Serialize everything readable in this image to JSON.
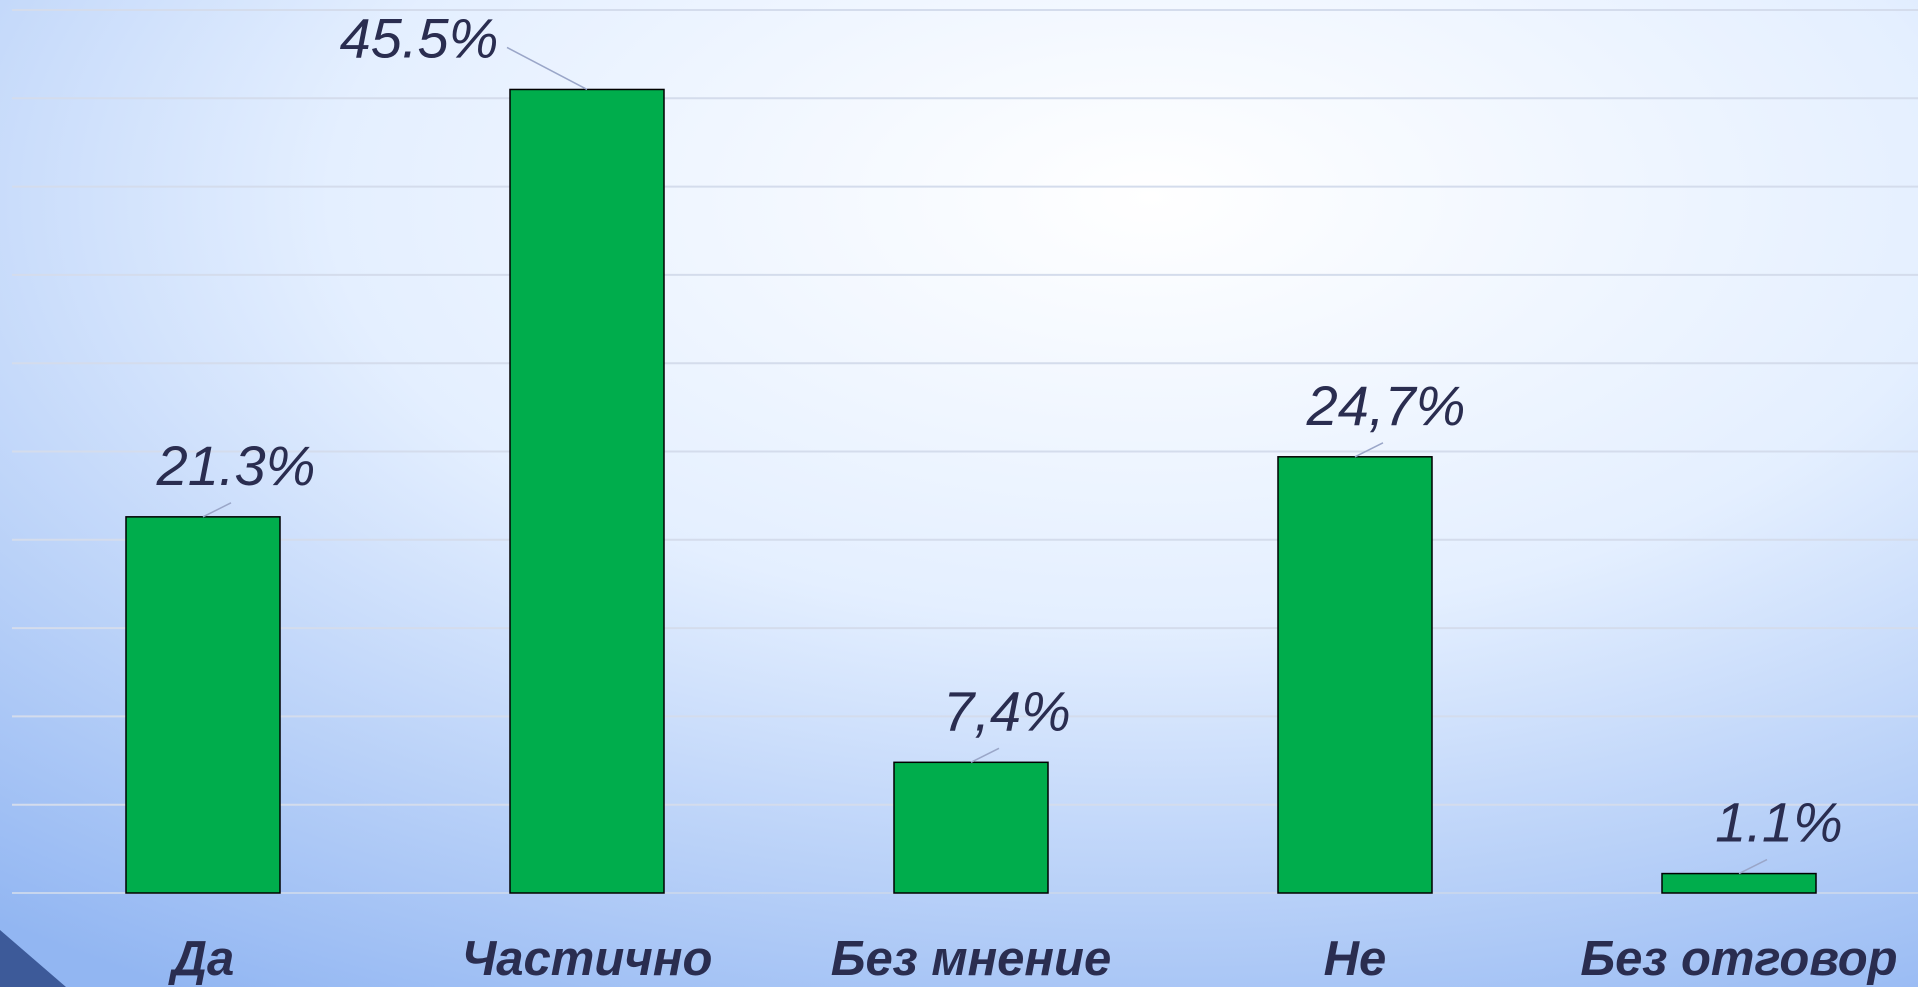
{
  "chart_data": {
    "type": "bar",
    "categories": [
      "Да",
      "Частично",
      "Без мнение",
      "Не",
      "Без отговор"
    ],
    "values": [
      21.3,
      45.5,
      7.4,
      24.7,
      1.1
    ],
    "value_labels": [
      "21.3%",
      "45.5%",
      "7,4%",
      "24,7%",
      "1.1%"
    ],
    "color": "#00ad4c",
    "ylim": [
      0,
      50
    ],
    "yticks": [
      0,
      5,
      10,
      15,
      20,
      25,
      30,
      35,
      40,
      45,
      50
    ],
    "grid": true
  }
}
